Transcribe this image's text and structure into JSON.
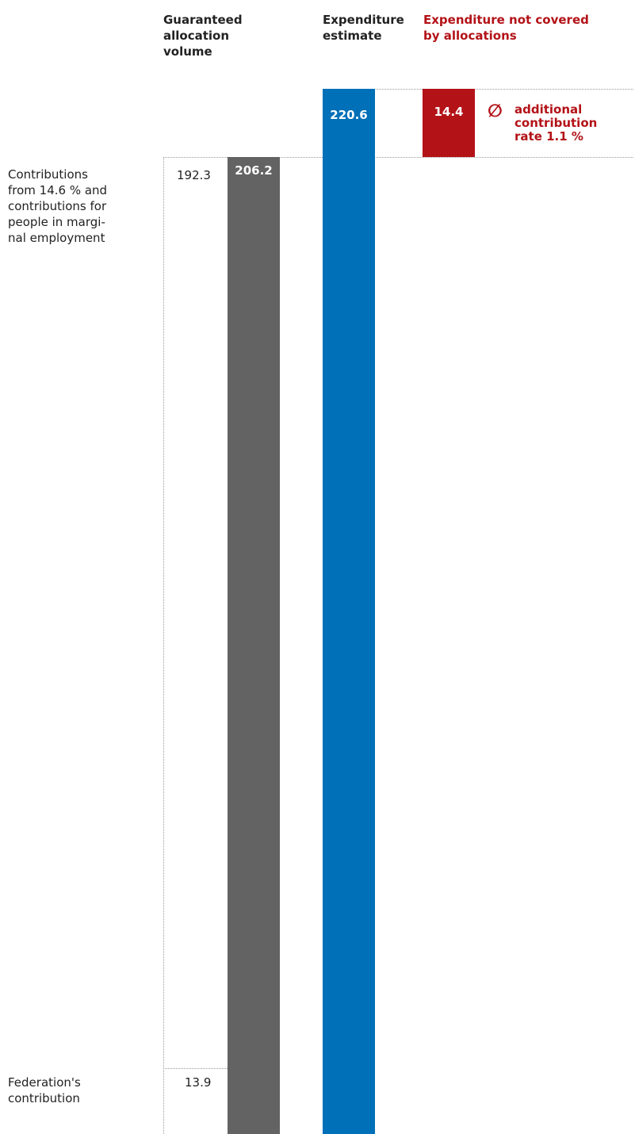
{
  "chart_data": {
    "type": "bar",
    "unit": "",
    "headers": {
      "guaranteed": "Guaranteed\nallocation\nvolume",
      "expenditure": "Expenditure\nestimate",
      "uncovered": "Expenditure not covered\nby allocations"
    },
    "guaranteed": {
      "total": 206.2,
      "total_label": "206.2",
      "segments": [
        {
          "label": "Contributions\nfrom 14.6 % and\ncontributions for\npeople in margi-\nnal employment",
          "value": 192.3,
          "value_label": "192.3"
        },
        {
          "label": "Federation's\ncontribution",
          "value": 13.9,
          "value_label": "13.9"
        }
      ]
    },
    "expenditure": {
      "value": 220.6,
      "value_label": "220.6"
    },
    "uncovered": {
      "value": 14.4,
      "value_label": "14.4",
      "symbol": "∅",
      "note": "additional\ncontribution\nrate  1.1 %"
    },
    "colors": {
      "guaranteed": "#636363",
      "expenditure": "#0070b8",
      "uncovered": "#b31217"
    }
  }
}
